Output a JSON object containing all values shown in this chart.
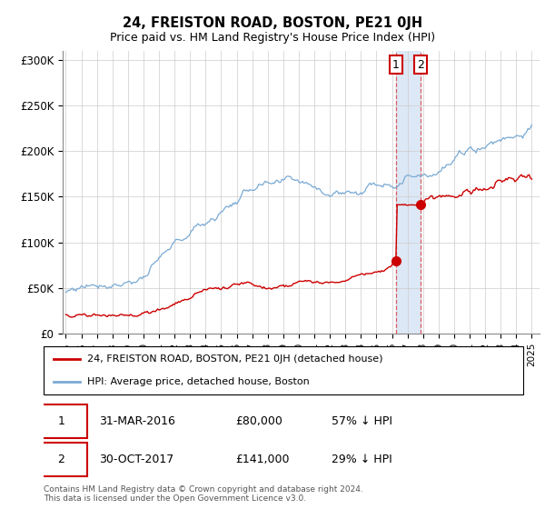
{
  "title": "24, FREISTON ROAD, BOSTON, PE21 0JH",
  "subtitle": "Price paid vs. HM Land Registry's House Price Index (HPI)",
  "ylabel_ticks": [
    "£0",
    "£50K",
    "£100K",
    "£150K",
    "£200K",
    "£250K",
    "£300K"
  ],
  "ytick_vals": [
    0,
    50000,
    100000,
    150000,
    200000,
    250000,
    300000
  ],
  "ylim": [
    0,
    310000
  ],
  "xlim_start": 1994.8,
  "xlim_end": 2025.5,
  "legend_line1": "24, FREISTON ROAD, BOSTON, PE21 0JH (detached house)",
  "legend_line2": "HPI: Average price, detached house, Boston",
  "transaction1_date": "31-MAR-2016",
  "transaction1_price": "£80,000",
  "transaction1_hpi": "57% ↓ HPI",
  "transaction2_date": "30-OCT-2017",
  "transaction2_price": "£141,000",
  "transaction2_hpi": "29% ↓ HPI",
  "footer": "Contains HM Land Registry data © Crown copyright and database right 2024.\nThis data is licensed under the Open Government Licence v3.0.",
  "hpi_color": "#7aaad4",
  "price_color": "#cc0000",
  "vline_color": "#dd4444",
  "span_color": "#dce8f5",
  "marker1_year": 2016.25,
  "marker2_year": 2017.83,
  "marker1_y": 80000,
  "marker2_y": 141000,
  "hpi_seed": 77,
  "price_seed": 33
}
